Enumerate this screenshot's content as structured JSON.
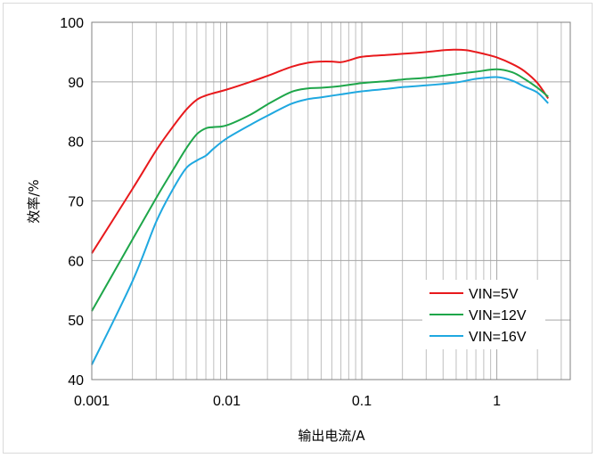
{
  "chart_data": {
    "type": "line",
    "title": "",
    "xlabel": "输出电流/A",
    "ylabel": "效率/%",
    "xscale": "log",
    "xlim": [
      0.001,
      3.5
    ],
    "ylim": [
      40,
      100
    ],
    "grid": true,
    "legend_position": "bottom-right",
    "x_tick_labels": [
      "0.001",
      "0.01",
      "0.1",
      "1"
    ],
    "y_tick_labels": [
      "40",
      "50",
      "60",
      "70",
      "80",
      "90",
      "100"
    ],
    "series": [
      {
        "name": "VIN=5V",
        "color": "#e8191c",
        "points": [
          [
            0.001,
            61.2
          ],
          [
            0.002,
            72.0
          ],
          [
            0.003,
            78.5
          ],
          [
            0.004,
            82.5
          ],
          [
            0.005,
            85.3
          ],
          [
            0.006,
            87.0
          ],
          [
            0.007,
            87.7
          ],
          [
            0.008,
            88.1
          ],
          [
            0.01,
            88.7
          ],
          [
            0.015,
            90.0
          ],
          [
            0.02,
            91.0
          ],
          [
            0.03,
            92.5
          ],
          [
            0.04,
            93.2
          ],
          [
            0.05,
            93.4
          ],
          [
            0.06,
            93.4
          ],
          [
            0.07,
            93.3
          ],
          [
            0.08,
            93.6
          ],
          [
            0.1,
            94.2
          ],
          [
            0.15,
            94.5
          ],
          [
            0.2,
            94.7
          ],
          [
            0.3,
            95.0
          ],
          [
            0.4,
            95.3
          ],
          [
            0.5,
            95.4
          ],
          [
            0.6,
            95.3
          ],
          [
            0.7,
            95.0
          ],
          [
            0.8,
            94.7
          ],
          [
            1.0,
            94.1
          ],
          [
            1.3,
            93.0
          ],
          [
            1.6,
            91.8
          ],
          [
            2.0,
            89.8
          ],
          [
            2.4,
            87.2
          ]
        ]
      },
      {
        "name": "VIN=12V",
        "color": "#1ea64a",
        "points": [
          [
            0.001,
            51.5
          ],
          [
            0.002,
            63.5
          ],
          [
            0.003,
            70.5
          ],
          [
            0.004,
            75.2
          ],
          [
            0.005,
            78.8
          ],
          [
            0.006,
            81.2
          ],
          [
            0.007,
            82.2
          ],
          [
            0.008,
            82.4
          ],
          [
            0.01,
            82.7
          ],
          [
            0.015,
            84.5
          ],
          [
            0.02,
            86.2
          ],
          [
            0.03,
            88.3
          ],
          [
            0.04,
            88.9
          ],
          [
            0.05,
            89.0
          ],
          [
            0.07,
            89.3
          ],
          [
            0.1,
            89.8
          ],
          [
            0.15,
            90.1
          ],
          [
            0.2,
            90.4
          ],
          [
            0.3,
            90.7
          ],
          [
            0.5,
            91.3
          ],
          [
            0.7,
            91.7
          ],
          [
            1.0,
            92.1
          ],
          [
            1.3,
            91.6
          ],
          [
            1.6,
            90.5
          ],
          [
            2.0,
            89.0
          ],
          [
            2.4,
            87.5
          ]
        ]
      },
      {
        "name": "VIN=16V",
        "color": "#1fa8e0",
        "points": [
          [
            0.001,
            42.5
          ],
          [
            0.002,
            56.5
          ],
          [
            0.003,
            66.5
          ],
          [
            0.004,
            72.0
          ],
          [
            0.005,
            75.5
          ],
          [
            0.006,
            76.8
          ],
          [
            0.007,
            77.6
          ],
          [
            0.008,
            78.8
          ],
          [
            0.01,
            80.5
          ],
          [
            0.015,
            82.8
          ],
          [
            0.02,
            84.3
          ],
          [
            0.03,
            86.3
          ],
          [
            0.04,
            87.1
          ],
          [
            0.05,
            87.4
          ],
          [
            0.07,
            87.9
          ],
          [
            0.1,
            88.4
          ],
          [
            0.15,
            88.8
          ],
          [
            0.2,
            89.1
          ],
          [
            0.3,
            89.4
          ],
          [
            0.5,
            89.9
          ],
          [
            0.7,
            90.5
          ],
          [
            1.0,
            90.8
          ],
          [
            1.3,
            90.2
          ],
          [
            1.6,
            89.2
          ],
          [
            2.0,
            88.2
          ],
          [
            2.4,
            86.4
          ]
        ]
      }
    ]
  }
}
